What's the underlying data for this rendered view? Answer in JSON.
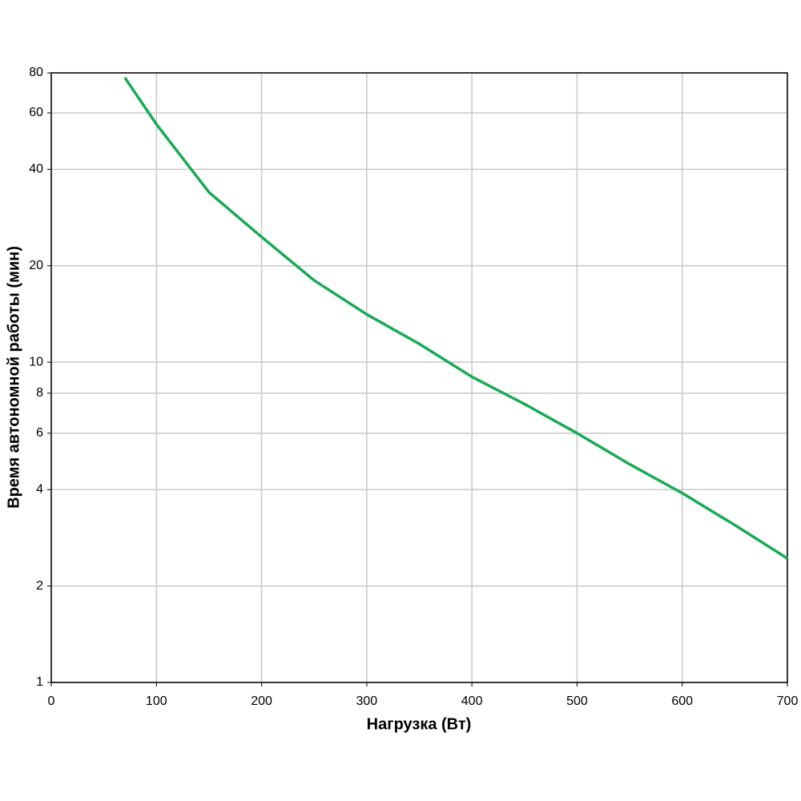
{
  "chart_data": {
    "type": "line",
    "x_label": "Нагрузка (Вт)",
    "y_label": "Время автономной работы (мин)",
    "x": [
      70,
      100,
      150,
      200,
      250,
      300,
      350,
      400,
      450,
      500,
      550,
      600,
      650,
      700
    ],
    "series": [
      {
        "color": "#1aaa55",
        "values": [
          77.3,
          55.3,
          33.9,
          24.6,
          18.0,
          14.1,
          11.4,
          9.0,
          7.4,
          6.0,
          4.8,
          3.9,
          3.1,
          2.44
        ]
      }
    ],
    "xlim": [
      0,
      700
    ],
    "xticks": [
      0,
      100,
      200,
      300,
      400,
      500,
      600,
      700
    ],
    "ylim": [
      1,
      80
    ],
    "yticks": [
      1,
      2,
      4,
      6,
      8,
      10,
      20,
      40,
      60,
      80
    ],
    "log_y": true,
    "grid": true
  }
}
